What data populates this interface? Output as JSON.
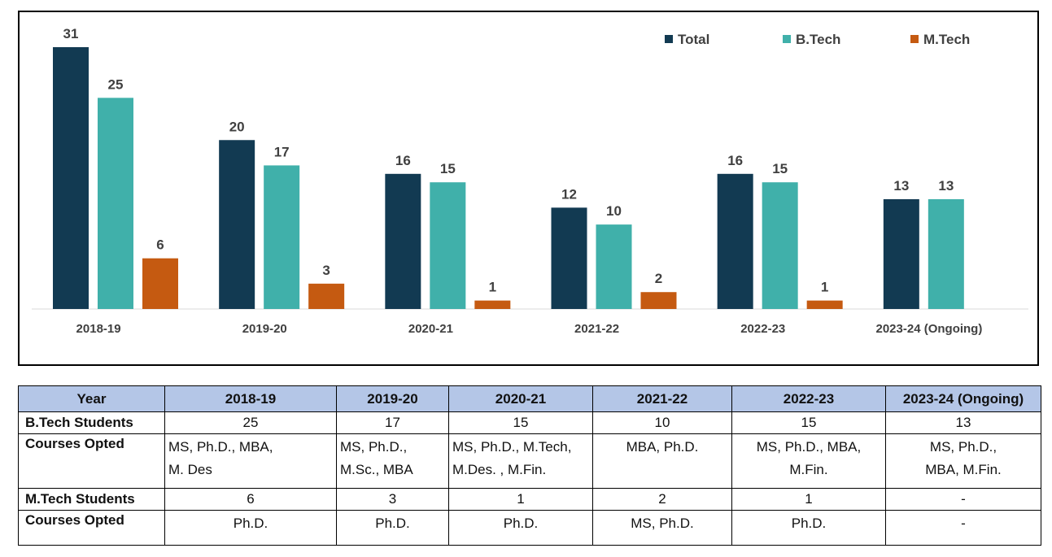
{
  "colors": {
    "total": "#123a52",
    "btech": "#40b0aa",
    "mtech": "#c55a11",
    "axis": "#d9d9d9"
  },
  "chart_data": {
    "type": "bar",
    "categories": [
      "2018-19",
      "2019-20",
      "2020-21",
      "2021-22",
      "2022-23",
      "2023-24 (Ongoing)"
    ],
    "series": [
      {
        "name": "Total",
        "values": [
          31,
          20,
          16,
          12,
          16,
          13
        ]
      },
      {
        "name": "B.Tech",
        "values": [
          25,
          17,
          15,
          10,
          15,
          13
        ]
      },
      {
        "name": "M.Tech",
        "values": [
          6,
          3,
          1,
          2,
          1,
          null
        ]
      }
    ],
    "ylim": [
      0,
      31
    ],
    "legend": "top-right",
    "grid": false
  },
  "table": {
    "header_label": "Year",
    "years": [
      "2018-19",
      "2019-20",
      "2020-21",
      "2021-22",
      "2022-23",
      "2023-24 (Ongoing)"
    ],
    "rows": [
      {
        "label": "B.Tech Students",
        "values": [
          "25",
          "17",
          "15",
          "10",
          "15",
          "13"
        ]
      },
      {
        "label": "Courses Opted",
        "values": [
          "MS, Ph.D., MBA,\nM. Des",
          "MS, Ph.D.,\nM.Sc., MBA",
          "MS, Ph.D., M.Tech,\nM.Des. , M.Fin.",
          "MBA, Ph.D.",
          "MS, Ph.D., MBA,\nM.Fin.",
          "MS, Ph.D.,\nMBA, M.Fin."
        ]
      },
      {
        "label": "M.Tech Students",
        "values": [
          "6",
          "3",
          "1",
          "2",
          "1",
          "-"
        ]
      },
      {
        "label": "Courses Opted",
        "values": [
          "Ph.D.",
          "Ph.D.",
          "Ph.D.",
          "MS, Ph.D.",
          "Ph.D.",
          "-"
        ]
      }
    ]
  }
}
